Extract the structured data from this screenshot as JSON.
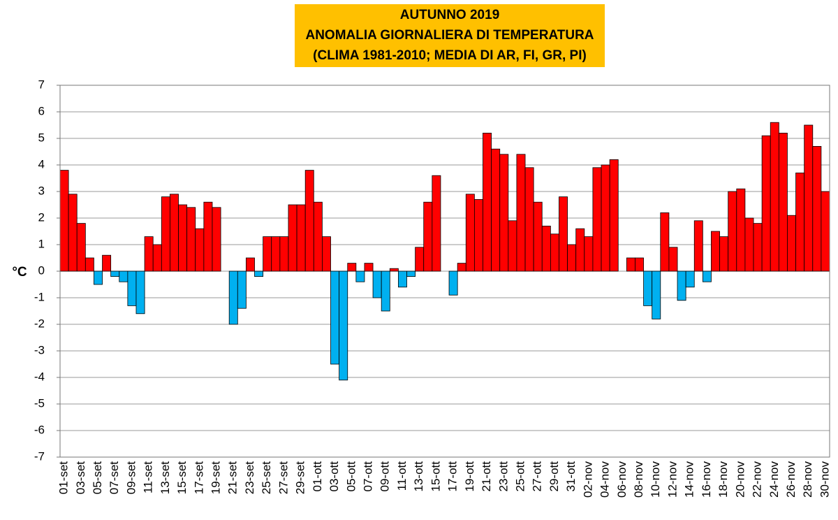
{
  "chart_data": {
    "type": "bar",
    "title": [
      "AUTUNNO 2019",
      "ANOMALIA GIORNALIERA DI TEMPERATURA",
      "(CLIMA 1981-2010; MEDIA DI AR, FI, GR, PI)"
    ],
    "y_label": "°C",
    "categories": [
      "01-set",
      null,
      "03-set",
      null,
      "05-set",
      null,
      "07-set",
      null,
      "09-set",
      null,
      "11-set",
      null,
      "13-set",
      null,
      "15-set",
      null,
      "17-set",
      null,
      "19-set",
      null,
      "21-set",
      null,
      "23-set",
      null,
      "25-set",
      null,
      "27-set",
      null,
      "29-set",
      null,
      "01-ott",
      null,
      "03-ott",
      null,
      "05-ott",
      null,
      "07-ott",
      null,
      "09-ott",
      null,
      "11-ott",
      null,
      "13-ott",
      null,
      "15-ott",
      null,
      "17-ott",
      null,
      "19-ott",
      null,
      "21-ott",
      null,
      "23-ott",
      null,
      "25-ott",
      null,
      "27-ott",
      null,
      "29-ott",
      null,
      "31-ott",
      null,
      "02-nov",
      null,
      "04-nov",
      null,
      "06-nov",
      null,
      "08-nov",
      null,
      "10-nov",
      null,
      "12-nov",
      null,
      "14-nov",
      null,
      "16-nov",
      null,
      "18-nov",
      null,
      "20-nov",
      null,
      "22-nov",
      null,
      "24-nov",
      null,
      "26-nov",
      null,
      "28-nov",
      null,
      "30-nov"
    ],
    "values": [
      3.8,
      2.9,
      1.8,
      0.5,
      -0.5,
      0.6,
      -0.2,
      -0.4,
      -1.3,
      -1.6,
      1.3,
      1.0,
      2.8,
      2.9,
      2.5,
      2.4,
      1.6,
      2.6,
      2.4,
      null,
      -2.0,
      -1.4,
      0.5,
      -0.2,
      1.3,
      1.3,
      1.3,
      2.5,
      2.5,
      3.8,
      2.6,
      1.3,
      -3.5,
      -4.1,
      0.3,
      -0.4,
      0.3,
      -1.0,
      -1.5,
      0.1,
      -0.6,
      -0.2,
      0.9,
      2.6,
      3.6,
      null,
      -0.9,
      0.3,
      2.9,
      2.7,
      5.2,
      4.6,
      4.4,
      1.9,
      4.4,
      3.9,
      2.6,
      1.7,
      1.4,
      2.8,
      1.0,
      1.6,
      1.3,
      3.9,
      4.0,
      4.2,
      null,
      0.5,
      0.5,
      -1.3,
      -1.8,
      2.2,
      0.9,
      -1.1,
      -0.6,
      1.9,
      -0.4,
      1.5,
      1.3,
      3.0,
      3.1,
      2.0,
      1.8,
      5.1,
      5.6,
      5.2,
      2.1,
      3.7,
      5.5,
      4.7,
      3.0
    ],
    "positive_color": "#ff0000",
    "negative_color": "#00b0f0",
    "ylim": [
      -7,
      7
    ],
    "yticks": [
      -7,
      -6,
      -5,
      -4,
      -3,
      -2,
      -1,
      0,
      1,
      2,
      3,
      4,
      5,
      6,
      7
    ],
    "grid": true
  }
}
